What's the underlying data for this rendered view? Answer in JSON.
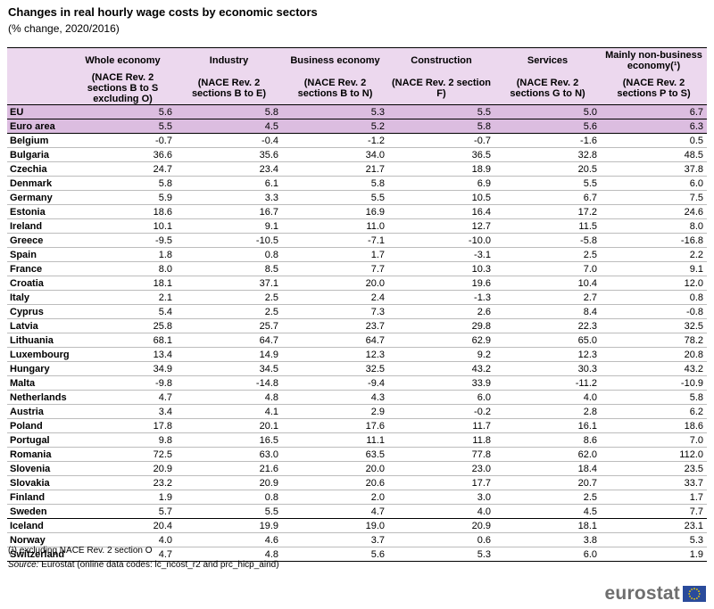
{
  "title": "Changes in real hourly wage costs by economic sectors",
  "subtitle": "(% change, 2020/2016)",
  "columns": [
    {
      "name": "Whole economy",
      "sub": "(NACE Rev. 2 sections B to S excluding O)"
    },
    {
      "name": "Industry",
      "sub": "(NACE Rev. 2 sections B to E)"
    },
    {
      "name": "Business economy",
      "sub": "(NACE Rev. 2 sections B to N)"
    },
    {
      "name": "Construction",
      "sub": "(NACE Rev. 2 section F)"
    },
    {
      "name": "Services",
      "sub": "(NACE Rev. 2 sections G to N)"
    },
    {
      "name": "Mainly non-business economy(¹)",
      "sub": "(NACE Rev. 2 sections P to S)"
    }
  ],
  "rows": [
    {
      "name": "EU",
      "values": [
        "5.6",
        "5.8",
        "5.3",
        "5.5",
        "5.0",
        "6.7"
      ]
    },
    {
      "name": "Euro area",
      "values": [
        "5.5",
        "4.5",
        "5.2",
        "5.8",
        "5.6",
        "6.3"
      ]
    },
    {
      "name": "Belgium",
      "values": [
        "-0.7",
        "-0.4",
        "-1.2",
        "-0.7",
        "-1.6",
        "0.5"
      ]
    },
    {
      "name": "Bulgaria",
      "values": [
        "36.6",
        "35.6",
        "34.0",
        "36.5",
        "32.8",
        "48.5"
      ]
    },
    {
      "name": "Czechia",
      "values": [
        "24.7",
        "23.4",
        "21.7",
        "18.9",
        "20.5",
        "37.8"
      ]
    },
    {
      "name": "Denmark",
      "values": [
        "5.8",
        "6.1",
        "5.8",
        "6.9",
        "5.5",
        "6.0"
      ]
    },
    {
      "name": "Germany",
      "values": [
        "5.9",
        "3.3",
        "5.5",
        "10.5",
        "6.7",
        "7.5"
      ]
    },
    {
      "name": "Estonia",
      "values": [
        "18.6",
        "16.7",
        "16.9",
        "16.4",
        "17.2",
        "24.6"
      ]
    },
    {
      "name": "Ireland",
      "values": [
        "10.1",
        "9.1",
        "11.0",
        "12.7",
        "11.5",
        "8.0"
      ]
    },
    {
      "name": "Greece",
      "values": [
        "-9.5",
        "-10.5",
        "-7.1",
        "-10.0",
        "-5.8",
        "-16.8"
      ]
    },
    {
      "name": "Spain",
      "values": [
        "1.8",
        "0.8",
        "1.7",
        "-3.1",
        "2.5",
        "2.2"
      ]
    },
    {
      "name": "France",
      "values": [
        "8.0",
        "8.5",
        "7.7",
        "10.3",
        "7.0",
        "9.1"
      ]
    },
    {
      "name": "Croatia",
      "values": [
        "18.1",
        "37.1",
        "20.0",
        "19.6",
        "10.4",
        "12.0"
      ]
    },
    {
      "name": "Italy",
      "values": [
        "2.1",
        "2.5",
        "2.4",
        "-1.3",
        "2.7",
        "0.8"
      ]
    },
    {
      "name": "Cyprus",
      "values": [
        "5.4",
        "2.5",
        "7.3",
        "2.6",
        "8.4",
        "-0.8"
      ]
    },
    {
      "name": "Latvia",
      "values": [
        "25.8",
        "25.7",
        "23.7",
        "29.8",
        "22.3",
        "32.5"
      ]
    },
    {
      "name": "Lithuania",
      "values": [
        "68.1",
        "64.7",
        "64.7",
        "62.9",
        "65.0",
        "78.2"
      ]
    },
    {
      "name": "Luxembourg",
      "values": [
        "13.4",
        "14.9",
        "12.3",
        "9.2",
        "12.3",
        "20.8"
      ]
    },
    {
      "name": "Hungary",
      "values": [
        "34.9",
        "34.5",
        "32.5",
        "43.2",
        "30.3",
        "43.2"
      ]
    },
    {
      "name": "Malta",
      "values": [
        "-9.8",
        "-14.8",
        "-9.4",
        "33.9",
        "-11.2",
        "-10.9"
      ]
    },
    {
      "name": "Netherlands",
      "values": [
        "4.7",
        "4.8",
        "4.3",
        "6.0",
        "4.0",
        "5.8"
      ]
    },
    {
      "name": "Austria",
      "values": [
        "3.4",
        "4.1",
        "2.9",
        "-0.2",
        "2.8",
        "6.2"
      ]
    },
    {
      "name": "Poland",
      "values": [
        "17.8",
        "20.1",
        "17.6",
        "11.7",
        "16.1",
        "18.6"
      ]
    },
    {
      "name": "Portugal",
      "values": [
        "9.8",
        "16.5",
        "11.1",
        "11.8",
        "8.6",
        "7.0"
      ]
    },
    {
      "name": "Romania",
      "values": [
        "72.5",
        "63.0",
        "63.5",
        "77.8",
        "62.0",
        "112.0"
      ]
    },
    {
      "name": "Slovenia",
      "values": [
        "20.9",
        "21.6",
        "20.0",
        "23.0",
        "18.4",
        "23.5"
      ]
    },
    {
      "name": "Slovakia",
      "values": [
        "23.2",
        "20.9",
        "20.6",
        "17.7",
        "20.7",
        "33.7"
      ]
    },
    {
      "name": "Finland",
      "values": [
        "1.9",
        "0.8",
        "2.0",
        "3.0",
        "2.5",
        "1.7"
      ]
    },
    {
      "name": "Sweden",
      "values": [
        "5.7",
        "5.5",
        "4.7",
        "4.0",
        "4.5",
        "7.7"
      ]
    },
    {
      "name": "Iceland",
      "values": [
        "20.4",
        "19.9",
        "19.0",
        "20.9",
        "18.1",
        "23.1"
      ]
    },
    {
      "name": "Norway",
      "values": [
        "4.0",
        "4.6",
        "3.7",
        "0.6",
        "3.8",
        "5.3"
      ]
    },
    {
      "name": "Switzerland",
      "values": [
        "4.7",
        "4.8",
        "5.6",
        "5.3",
        "6.0",
        "1.9"
      ]
    }
  ],
  "footnote": "(¹) excluding NACE Rev. 2 section O",
  "source_label": "Source:",
  "source_text": "Eurostat (online data codes: lc_ncost_r2 and prc_hicp_aind)",
  "logo_text": "eurostat",
  "colors": {
    "header_bg": "#ecd8ee",
    "aggregate_bg": "#dcbde0",
    "logo_text": "#6e6e6e",
    "flag_blue": "#2a4b9b",
    "flag_star": "#f5d200"
  }
}
